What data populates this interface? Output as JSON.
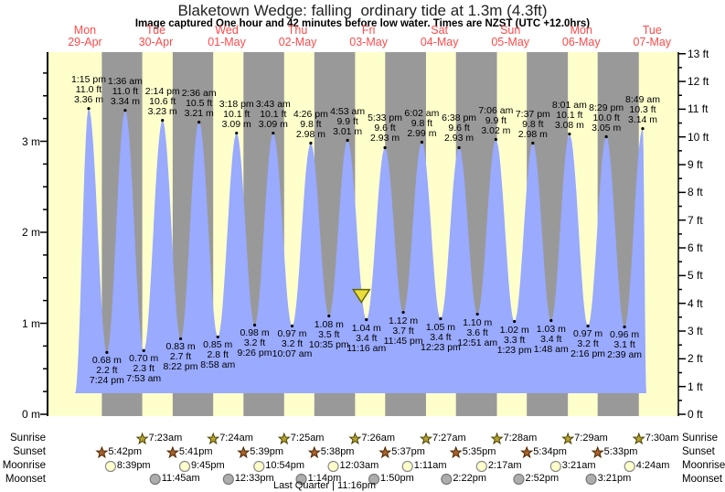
{
  "chart_data": {
    "type": "area",
    "title": "Blaketown Wedge: falling  ordinary tide at 1.3m (4.3ft)",
    "subtitle": "Image captured One hour and 42 minutes before low water. Times are NZST (UTC +12.0hrs)",
    "days": [
      {
        "name": "Mon",
        "date": "29-Apr"
      },
      {
        "name": "Tue",
        "date": "30-Apr"
      },
      {
        "name": "Wed",
        "date": "01-May"
      },
      {
        "name": "Thu",
        "date": "02-May"
      },
      {
        "name": "Fri",
        "date": "03-May"
      },
      {
        "name": "Sat",
        "date": "04-May"
      },
      {
        "name": "Sun",
        "date": "05-May"
      },
      {
        "name": "Mon",
        "date": "06-May"
      },
      {
        "name": "Tue",
        "date": "07-May"
      }
    ],
    "y_left": {
      "unit": "m",
      "labels": [
        "0 m",
        "1 m",
        "2 m",
        "3 m"
      ],
      "minor_step": 0.25,
      "max": 3.95
    },
    "y_right": {
      "unit": "ft",
      "labels": [
        "0 ft",
        "1 ft",
        "2 ft",
        "3 ft",
        "4 ft",
        "5 ft",
        "6 ft",
        "7 ft",
        "8 ft",
        "9 ft",
        "10 ft",
        "11 ft",
        "12 ft",
        "13 ft"
      ],
      "minor_step": 0.5,
      "max": 13
    },
    "tide_events": [
      {
        "day": 0,
        "time": "1:15 pm",
        "type": "high",
        "m": 3.36,
        "ft": "11.0"
      },
      {
        "day": 0,
        "time": "7:24 pm",
        "type": "low",
        "m": 0.68,
        "ft": "2.2"
      },
      {
        "day": 1,
        "time": "1:36 am",
        "type": "high",
        "m": 3.34,
        "ft": "11.0"
      },
      {
        "day": 1,
        "time": "7:53 am",
        "type": "low",
        "m": 0.7,
        "ft": "2.3"
      },
      {
        "day": 1,
        "time": "2:14 pm",
        "type": "high",
        "m": 3.23,
        "ft": "10.6"
      },
      {
        "day": 1,
        "time": "8:22 pm",
        "type": "low",
        "m": 0.83,
        "ft": "2.7"
      },
      {
        "day": 2,
        "time": "2:36 am",
        "type": "high",
        "m": 3.21,
        "ft": "10.5"
      },
      {
        "day": 2,
        "time": "8:58 am",
        "type": "low",
        "m": 0.85,
        "ft": "2.8"
      },
      {
        "day": 2,
        "time": "3:18 pm",
        "type": "high",
        "m": 3.09,
        "ft": "10.1"
      },
      {
        "day": 2,
        "time": "9:26 pm",
        "type": "low",
        "m": 0.98,
        "ft": "3.2"
      },
      {
        "day": 3,
        "time": "3:43 am",
        "type": "high",
        "m": 3.09,
        "ft": "10.1"
      },
      {
        "day": 3,
        "time": "10:07 am",
        "type": "low",
        "m": 0.97,
        "ft": "3.2"
      },
      {
        "day": 3,
        "time": "4:26 pm",
        "type": "high",
        "m": 2.98,
        "ft": "9.8"
      },
      {
        "day": 3,
        "time": "10:35 pm",
        "type": "low",
        "m": 1.08,
        "ft": "3.5"
      },
      {
        "day": 4,
        "time": "4:53 am",
        "type": "high",
        "m": 3.01,
        "ft": "9.9"
      },
      {
        "day": 4,
        "time": "11:16 am",
        "type": "low",
        "m": 1.04,
        "ft": "3.4"
      },
      {
        "day": 4,
        "time": "5:33 pm",
        "type": "high",
        "m": 2.93,
        "ft": "9.6"
      },
      {
        "day": 4,
        "time": "11:45 pm",
        "type": "low",
        "m": 1.12,
        "ft": "3.7"
      },
      {
        "day": 5,
        "time": "6:02 am",
        "type": "high",
        "m": 2.99,
        "ft": "9.8"
      },
      {
        "day": 5,
        "time": "12:23 pm",
        "type": "low",
        "m": 1.05,
        "ft": "3.4"
      },
      {
        "day": 5,
        "time": "6:38 pm",
        "type": "high",
        "m": 2.93,
        "ft": "9.6"
      },
      {
        "day": 6,
        "time": "12:51 am",
        "type": "low",
        "m": 1.1,
        "ft": "3.6"
      },
      {
        "day": 6,
        "time": "7:06 am",
        "type": "high",
        "m": 3.02,
        "ft": "9.9"
      },
      {
        "day": 6,
        "time": "1:23 pm",
        "type": "low",
        "m": 1.02,
        "ft": "3.3"
      },
      {
        "day": 6,
        "time": "7:37 pm",
        "type": "high",
        "m": 2.98,
        "ft": "9.8"
      },
      {
        "day": 7,
        "time": "1:48 am",
        "type": "low",
        "m": 1.03,
        "ft": "3.4"
      },
      {
        "day": 7,
        "time": "8:01 am",
        "type": "high",
        "m": 3.08,
        "ft": "10.1"
      },
      {
        "day": 7,
        "time": "2:16 pm",
        "type": "low",
        "m": 0.97,
        "ft": "3.2"
      },
      {
        "day": 7,
        "time": "8:29 pm",
        "type": "high",
        "m": 3.05,
        "ft": "10.0"
      },
      {
        "day": 8,
        "time": "2:39 am",
        "type": "low",
        "m": 0.96,
        "ft": "3.1"
      },
      {
        "day": 8,
        "time": "8:49 am",
        "type": "high",
        "m": 3.14,
        "ft": "10.3"
      }
    ],
    "capture_marker": {
      "height_m": 1.3,
      "minutes_before_low": 102,
      "ref_low": {
        "day": 4,
        "time": "11:16 am"
      }
    }
  },
  "colors": {
    "day_band": "#FFFFCC",
    "night_band": "#999999",
    "tide_fill": "#99AAFF",
    "day_label": "#FF4A4A",
    "axis": "#000000",
    "triangle_fill": "#E8DC3C",
    "triangle_stroke": "#666600",
    "sunrise_star": "#B3A433",
    "sunset_star": "#A8622D",
    "moonrise_circle": "#FFFFCC",
    "moonset_circle": "#ADADAD"
  },
  "sun_moon": {
    "row_labels": [
      "Sunrise",
      "Sunset",
      "Moonrise",
      "Moonset"
    ],
    "sunrise": [
      {
        "day": 1,
        "time": "7:23am"
      },
      {
        "day": 2,
        "time": "7:24am"
      },
      {
        "day": 3,
        "time": "7:25am"
      },
      {
        "day": 4,
        "time": "7:26am"
      },
      {
        "day": 5,
        "time": "7:27am"
      },
      {
        "day": 6,
        "time": "7:28am"
      },
      {
        "day": 7,
        "time": "7:29am"
      },
      {
        "day": 8,
        "time": "7:30am"
      }
    ],
    "sunset": [
      {
        "day": 0,
        "time": "5:42pm"
      },
      {
        "day": 1,
        "time": "5:41pm"
      },
      {
        "day": 2,
        "time": "5:39pm"
      },
      {
        "day": 3,
        "time": "5:38pm"
      },
      {
        "day": 4,
        "time": "5:37pm"
      },
      {
        "day": 5,
        "time": "5:35pm"
      },
      {
        "day": 6,
        "time": "5:34pm"
      },
      {
        "day": 7,
        "time": "5:33pm"
      }
    ],
    "moonrise": [
      {
        "day": 0,
        "time": "8:39pm"
      },
      {
        "day": 1,
        "time": "9:45pm"
      },
      {
        "day": 2,
        "time": "10:54pm"
      },
      {
        "day": 4,
        "time": "12:03am"
      },
      {
        "day": 5,
        "time": "1:11am"
      },
      {
        "day": 6,
        "time": "2:17am"
      },
      {
        "day": 7,
        "time": "3:21am"
      },
      {
        "day": 8,
        "time": "4:24am"
      }
    ],
    "moonset": [
      {
        "day": 1,
        "time": "11:45am"
      },
      {
        "day": 2,
        "time": "12:33pm"
      },
      {
        "day": 3,
        "time": "1:14pm"
      },
      {
        "day": 4,
        "time": "1:50pm"
      },
      {
        "day": 5,
        "time": "2:22pm"
      },
      {
        "day": 6,
        "time": "2:52pm"
      },
      {
        "day": 7,
        "time": "3:21pm"
      }
    ],
    "moon_phase": "Last Quarter | 11:16pm"
  }
}
